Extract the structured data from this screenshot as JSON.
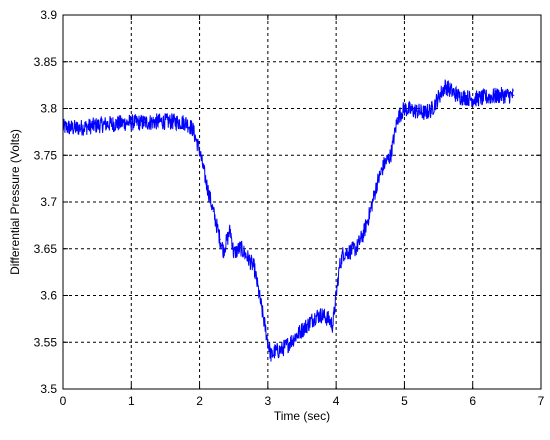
{
  "chart_data": {
    "type": "line",
    "title": "",
    "xlabel": "Time (sec)",
    "ylabel": "Differential Pressure (Volts)",
    "xlim": [
      0,
      7
    ],
    "ylim": [
      3.5,
      3.9
    ],
    "x_ticks": [
      0,
      1,
      2,
      3,
      4,
      5,
      6,
      7
    ],
    "y_ticks": [
      3.5,
      3.55,
      3.6,
      3.65,
      3.7,
      3.75,
      3.8,
      3.85,
      3.9
    ],
    "x_tick_labels": [
      "0",
      "1",
      "2",
      "3",
      "4",
      "5",
      "6",
      "7"
    ],
    "y_tick_labels": [
      "3.5",
      "3.55",
      "3.6",
      "3.65",
      "3.7",
      "3.75",
      "3.8",
      "3.85",
      "3.9"
    ],
    "grid": true,
    "grid_style": "dashed",
    "legend": "none",
    "series_color": "#0000ff",
    "series": [
      {
        "x": [
          0,
          0.2,
          0.4,
          0.6,
          0.8,
          1.0,
          1.2,
          1.4,
          1.6,
          1.8,
          1.9,
          2.0,
          2.1,
          2.2,
          2.3,
          2.35,
          2.45,
          2.5,
          2.6,
          2.7,
          2.8,
          2.9,
          3.0,
          3.05,
          3.1,
          3.2,
          3.3,
          3.4,
          3.5,
          3.6,
          3.7,
          3.8,
          3.9,
          3.95,
          4.0,
          4.05,
          4.1,
          4.2,
          4.3,
          4.4,
          4.5,
          4.6,
          4.7,
          4.8,
          4.9,
          5.0,
          5.1,
          5.2,
          5.3,
          5.4,
          5.5,
          5.6,
          5.7,
          5.8,
          5.9,
          6.0,
          6.2,
          6.4,
          6.6
        ],
        "y": [
          3.78,
          3.779,
          3.781,
          3.783,
          3.784,
          3.785,
          3.785,
          3.786,
          3.786,
          3.785,
          3.778,
          3.755,
          3.72,
          3.69,
          3.66,
          3.648,
          3.67,
          3.645,
          3.651,
          3.641,
          3.63,
          3.59,
          3.55,
          3.535,
          3.54,
          3.542,
          3.548,
          3.556,
          3.563,
          3.57,
          3.578,
          3.579,
          3.574,
          3.568,
          3.6,
          3.631,
          3.645,
          3.647,
          3.651,
          3.666,
          3.69,
          3.72,
          3.74,
          3.75,
          3.79,
          3.8,
          3.798,
          3.797,
          3.795,
          3.799,
          3.812,
          3.824,
          3.818,
          3.813,
          3.812,
          3.81,
          3.812,
          3.814,
          3.814
        ]
      }
    ]
  }
}
